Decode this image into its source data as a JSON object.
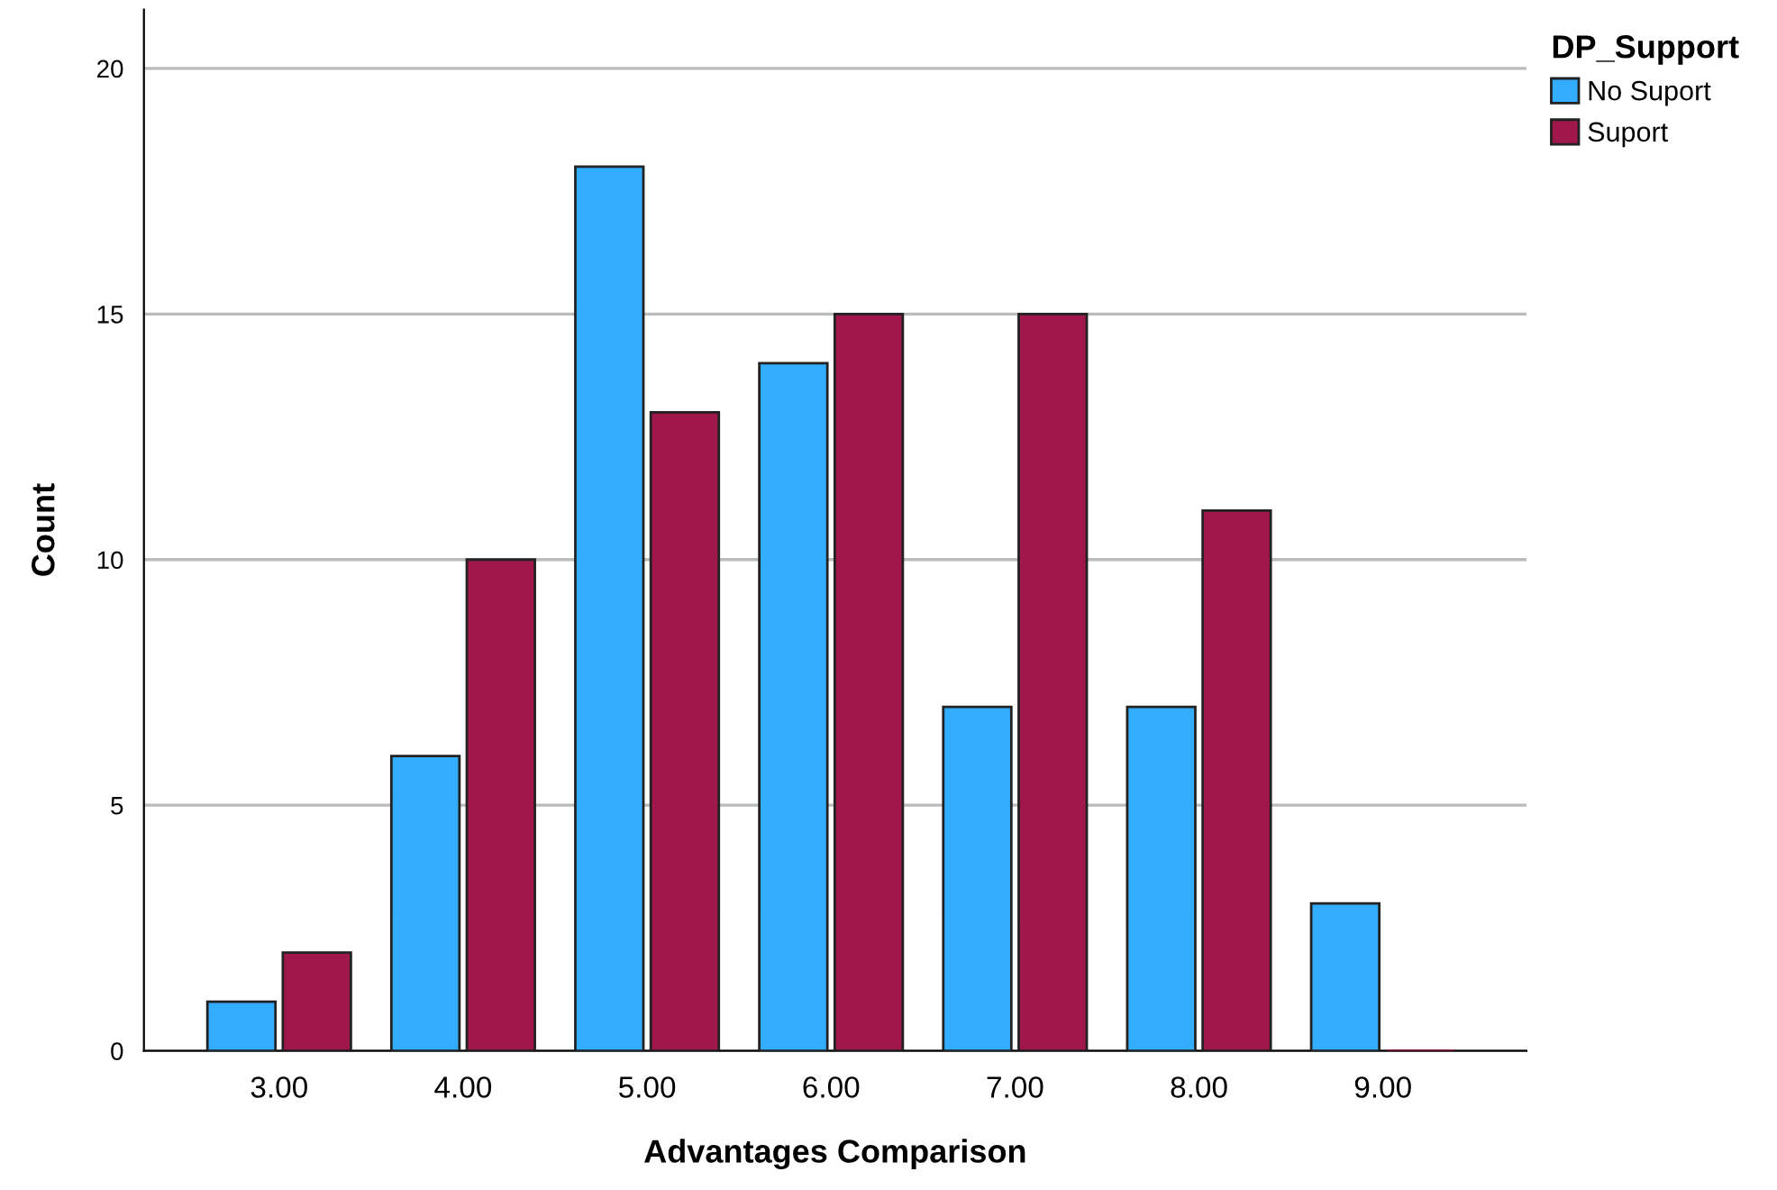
{
  "chart_data": {
    "type": "bar",
    "xlabel": "Advantages Comparison",
    "ylabel": "Count",
    "legend_title": "DP_Support",
    "categories": [
      "3.00",
      "4.00",
      "5.00",
      "6.00",
      "7.00",
      "8.00",
      "9.00"
    ],
    "series": [
      {
        "name": "No Suport",
        "color": "#33adff",
        "values": [
          1,
          6,
          18,
          14,
          7,
          7,
          3
        ]
      },
      {
        "name": "Suport",
        "color": "#a0174c",
        "values": [
          2,
          10,
          13,
          15,
          15,
          11,
          0
        ]
      }
    ],
    "ylim": [
      0,
      21.2
    ],
    "yticks": [
      0,
      5,
      10,
      15,
      20
    ],
    "grid": "y",
    "legend": "top right"
  }
}
